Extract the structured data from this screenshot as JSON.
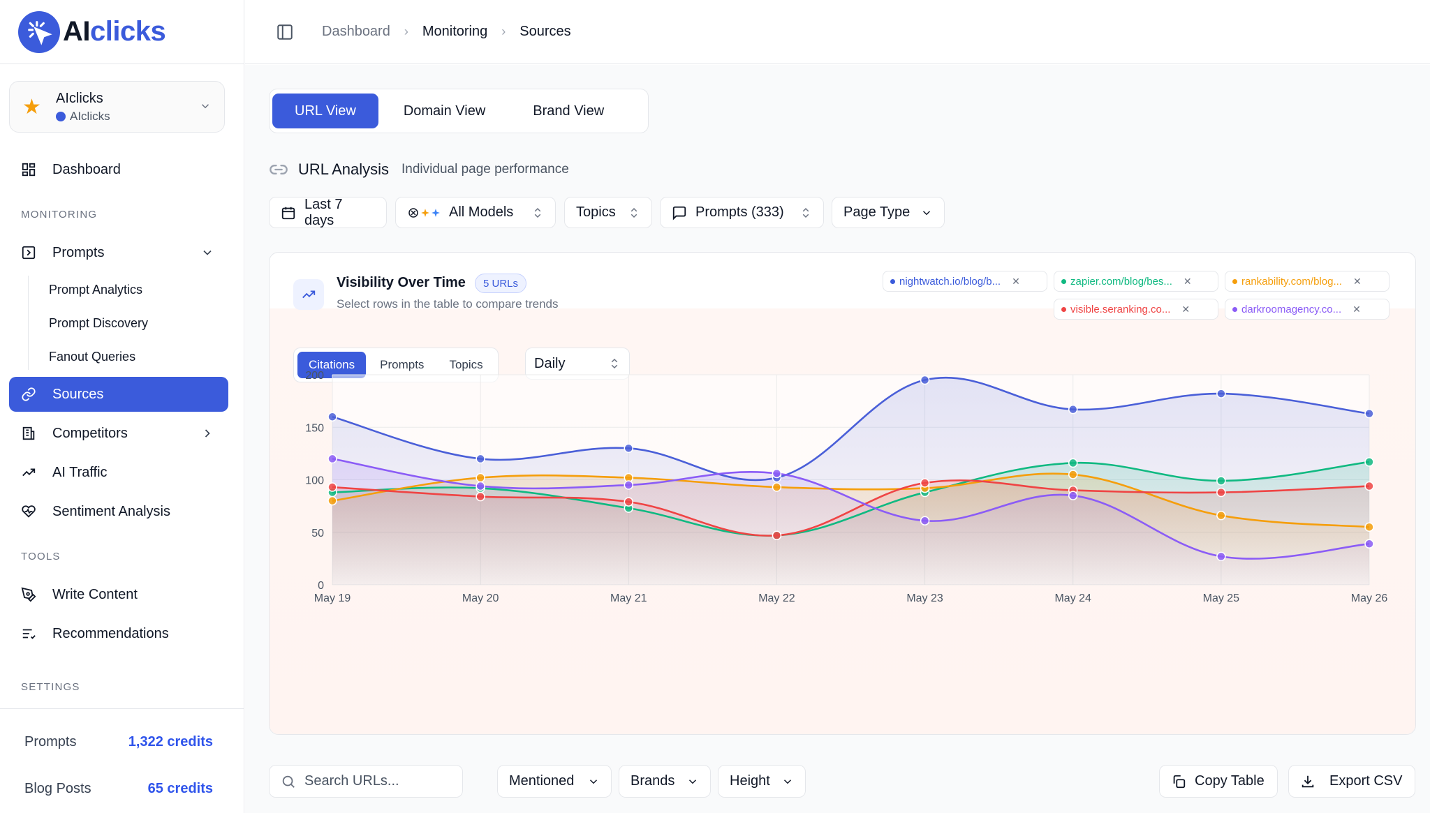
{
  "app": {
    "logo_a": "AI",
    "logo_b": "clicks"
  },
  "workspace": {
    "name": "AIclicks",
    "sub": "AIclicks"
  },
  "sidebar": {
    "dashboard": "Dashboard",
    "monitoring_label": "MONITORING",
    "prompts": "Prompts",
    "prompt_sub": [
      "Prompt Analytics",
      "Prompt Discovery",
      "Fanout Queries"
    ],
    "sources": "Sources",
    "competitors": "Competitors",
    "ai_traffic": "AI Traffic",
    "sentiment": "Sentiment Analysis",
    "tools_label": "TOOLS",
    "write_content": "Write Content",
    "recommendations": "Recommendations",
    "settings_label": "SETTINGS"
  },
  "credits": [
    {
      "label": "Prompts",
      "value": "1,322 credits"
    },
    {
      "label": "Blog Posts",
      "value": "65 credits"
    }
  ],
  "breadcrumb": [
    "Dashboard",
    "Monitoring",
    "Sources"
  ],
  "views": [
    "URL View",
    "Domain View",
    "Brand View"
  ],
  "section": {
    "title": "URL Analysis",
    "subtitle": "Individual page performance"
  },
  "filters": {
    "date": "Last 7 days",
    "models": "All Models",
    "topics": "Topics",
    "prompts": "Prompts (333)",
    "page_type": "Page Type"
  },
  "card": {
    "title": "Visibility Over Time",
    "badge": "5 URLs",
    "subtitle": "Select rows in the table to compare trends",
    "metrics": [
      "Citations",
      "Prompts",
      "Topics"
    ],
    "frequency": "Daily"
  },
  "url_chips": [
    {
      "label": "nightwatch.io/blog/b...",
      "color": "#3b5bdb"
    },
    {
      "label": "zapier.com/blog/bes...",
      "color": "#10b981"
    },
    {
      "label": "rankability.com/blog...",
      "color": "#f59e0b"
    },
    {
      "label": "visible.seranking.co...",
      "color": "#ef4444"
    },
    {
      "label": "darkroomagency.co...",
      "color": "#8b5cf6"
    }
  ],
  "chart_data": {
    "type": "area",
    "categories": [
      "May 19",
      "May 20",
      "May 21",
      "May 22",
      "May 23",
      "May 24",
      "May 25",
      "May 26"
    ],
    "ylim": [
      0,
      200
    ],
    "yticks": [
      0,
      50,
      100,
      150,
      200
    ],
    "grid": true,
    "series": [
      {
        "name": "nightwatch.io/blog/b...",
        "color": "#4a5fd8",
        "values": [
          160,
          120,
          130,
          102,
          195,
          167,
          182,
          163
        ]
      },
      {
        "name": "zapier.com/blog/bes...",
        "color": "#10b981",
        "values": [
          88,
          92,
          73,
          47,
          88,
          116,
          99,
          117
        ]
      },
      {
        "name": "rankability.com/blog...",
        "color": "#f59e0b",
        "values": [
          80,
          102,
          102,
          93,
          92,
          105,
          66,
          55
        ]
      },
      {
        "name": "visible.seranking.co...",
        "color": "#ef4444",
        "values": [
          93,
          84,
          79,
          47,
          97,
          90,
          88,
          94
        ]
      },
      {
        "name": "darkroomagency.co...",
        "color": "#8b5cf6",
        "values": [
          120,
          94,
          95,
          106,
          61,
          85,
          27,
          39
        ]
      }
    ]
  },
  "toolbar": {
    "search_placeholder": "Search URLs...",
    "mentioned": "Mentioned",
    "brands": "Brands",
    "height": "Height",
    "copy_table": "Copy Table",
    "export_csv": "Export CSV"
  }
}
